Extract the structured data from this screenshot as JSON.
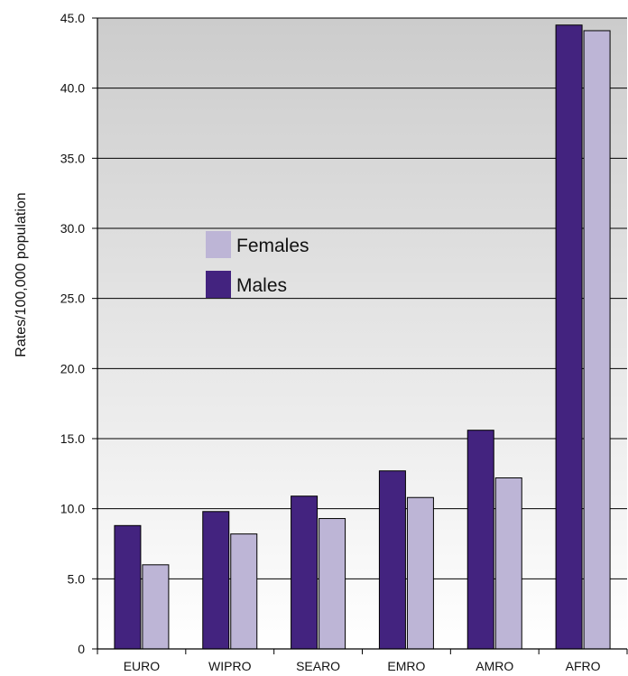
{
  "chart_data": {
    "type": "bar",
    "categories": [
      "EURO",
      "WIPRO",
      "SEARO",
      "EMRO",
      "AMRO",
      "AFRO"
    ],
    "series": [
      {
        "name": "Males",
        "values": [
          8.8,
          9.8,
          10.9,
          12.7,
          15.6,
          44.5
        ],
        "color": "#43237f"
      },
      {
        "name": "Females",
        "values": [
          6.0,
          8.2,
          9.3,
          10.8,
          12.2,
          44.1
        ],
        "color": "#bdb5d6"
      }
    ],
    "ylabel": "Rates/100,000 population",
    "ylim": [
      0,
      45
    ],
    "yticks": [
      "0",
      "5.0",
      "10.0",
      "15.0",
      "20.0",
      "25.0",
      "30.0",
      "35.0",
      "40.0",
      "45.0"
    ],
    "ytick_values": [
      0,
      5,
      10,
      15,
      20,
      25,
      30,
      35,
      40,
      45
    ],
    "grid": true,
    "legend": {
      "placement": "upper-left",
      "order": [
        "Females",
        "Males"
      ]
    },
    "background_gradient": [
      "#cccccc",
      "#ffffff"
    ]
  }
}
